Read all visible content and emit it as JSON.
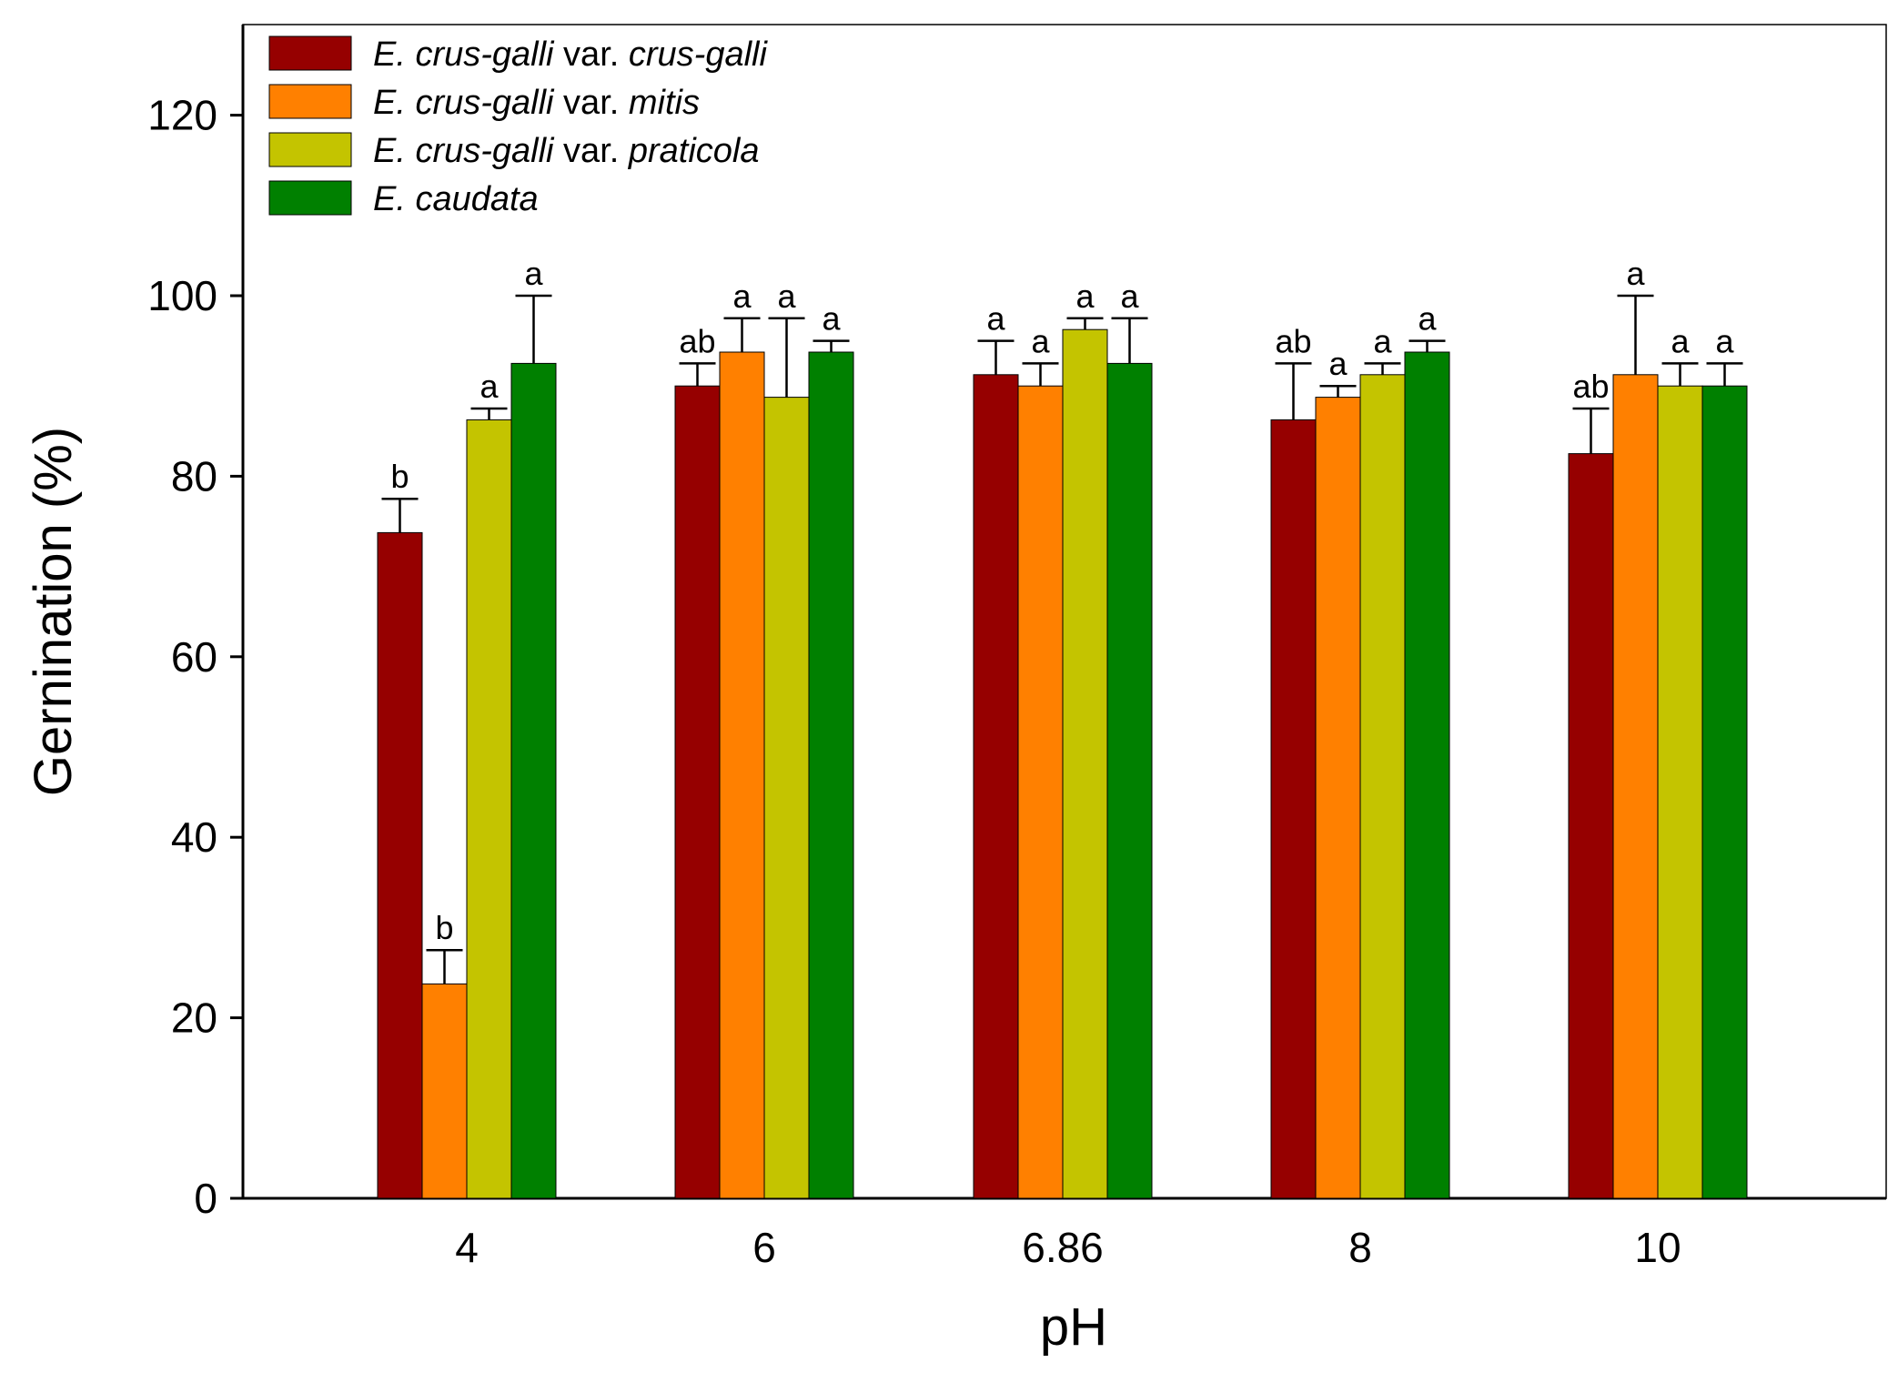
{
  "chart_data": {
    "type": "bar",
    "title": "",
    "xlabel": "pH",
    "ylabel": "Gernination (%)",
    "ylim": [
      0,
      130
    ],
    "yticks": [
      0,
      20,
      40,
      60,
      80,
      100,
      120
    ],
    "categories": [
      "4",
      "6",
      "6.86",
      "8",
      "10"
    ],
    "grid": false,
    "legend_position": "top-left",
    "series": [
      {
        "name": "E. crus-galli var. crus-galli",
        "legend_parts": [
          {
            "text": "E. crus-galli",
            "italic": true
          },
          {
            "text": " var. ",
            "italic": false
          },
          {
            "text": "crus-galli",
            "italic": true
          }
        ],
        "color": "#960000",
        "values": [
          73.75,
          90.0,
          91.25,
          86.25,
          82.5
        ],
        "errors": [
          3.75,
          2.5,
          3.75,
          6.25,
          5.0
        ],
        "labels": [
          "b",
          "ab",
          "a",
          "ab",
          "ab"
        ]
      },
      {
        "name": "E. crus-galli var. mitis",
        "legend_parts": [
          {
            "text": "E. crus-galli",
            "italic": true
          },
          {
            "text": " var. ",
            "italic": false
          },
          {
            "text": "mitis",
            "italic": true
          }
        ],
        "color": "#ff8000",
        "values": [
          23.75,
          93.75,
          90.0,
          88.75,
          91.25
        ],
        "errors": [
          3.75,
          3.75,
          2.5,
          1.25,
          8.75
        ],
        "labels": [
          "b",
          "a",
          "a",
          "a",
          "a"
        ]
      },
      {
        "name": "E. crus-galli var. praticola",
        "legend_parts": [
          {
            "text": "E. crus-galli",
            "italic": true
          },
          {
            "text": " var. ",
            "italic": false
          },
          {
            "text": "praticola",
            "italic": true
          }
        ],
        "color": "#c4c400",
        "values": [
          86.25,
          88.75,
          96.25,
          91.25,
          90.0
        ],
        "errors": [
          1.25,
          8.75,
          1.25,
          1.25,
          2.5
        ],
        "labels": [
          "a",
          "a",
          "a",
          "a",
          "a"
        ]
      },
      {
        "name": "E. caudata",
        "legend_parts": [
          {
            "text": "E. caudata",
            "italic": true
          }
        ],
        "color": "#008000",
        "values": [
          92.5,
          93.75,
          92.5,
          93.75,
          90.0
        ],
        "errors": [
          7.5,
          1.25,
          5.0,
          1.25,
          2.5
        ],
        "labels": [
          "a",
          "a",
          "a",
          "a",
          "a"
        ]
      }
    ]
  }
}
